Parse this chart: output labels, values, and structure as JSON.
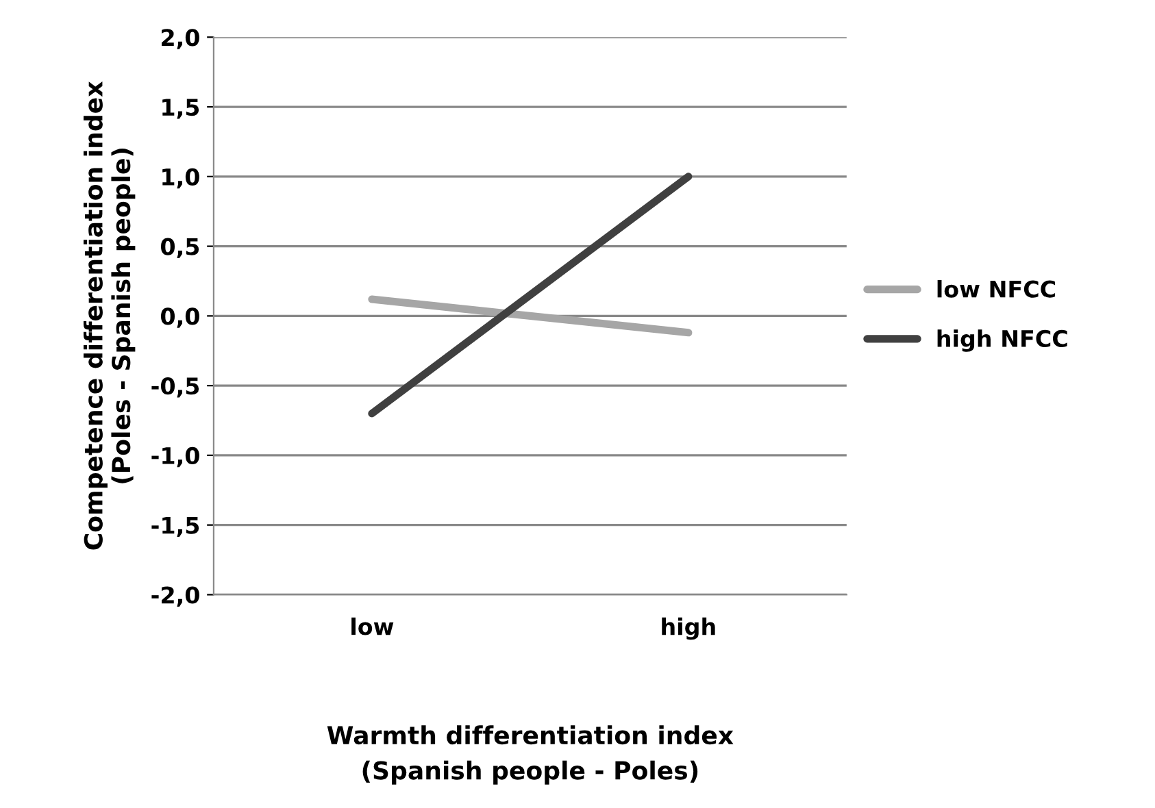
{
  "chart_data": {
    "type": "line",
    "xlabel": "Warmth differentiation index\n(Spanish people - Poles)",
    "ylabel": "Competence differentiation index\n(Poles - Spanish people)",
    "categories": [
      "low",
      "high"
    ],
    "series": [
      {
        "name": "low NFCC",
        "color": "#a6a6a6",
        "values": [
          0.12,
          -0.12
        ]
      },
      {
        "name": "high NFCC",
        "color": "#404040",
        "values": [
          -0.7,
          1.0
        ]
      }
    ],
    "ylim": [
      -2.0,
      2.0
    ],
    "yticks": [
      {
        "value": -2.0,
        "label": "-2,0"
      },
      {
        "value": -1.5,
        "label": "-1,5"
      },
      {
        "value": -1.0,
        "label": "-1,0"
      },
      {
        "value": -0.5,
        "label": "-0,5"
      },
      {
        "value": 0.0,
        "label": "0,0"
      },
      {
        "value": 0.5,
        "label": "0,5"
      },
      {
        "value": 1.0,
        "label": "1,0"
      },
      {
        "value": 1.5,
        "label": "1,5"
      },
      {
        "value": 2.0,
        "label": "2,0"
      }
    ],
    "grid": "y",
    "legend": "right",
    "marker": "none",
    "line_style": "solid"
  }
}
